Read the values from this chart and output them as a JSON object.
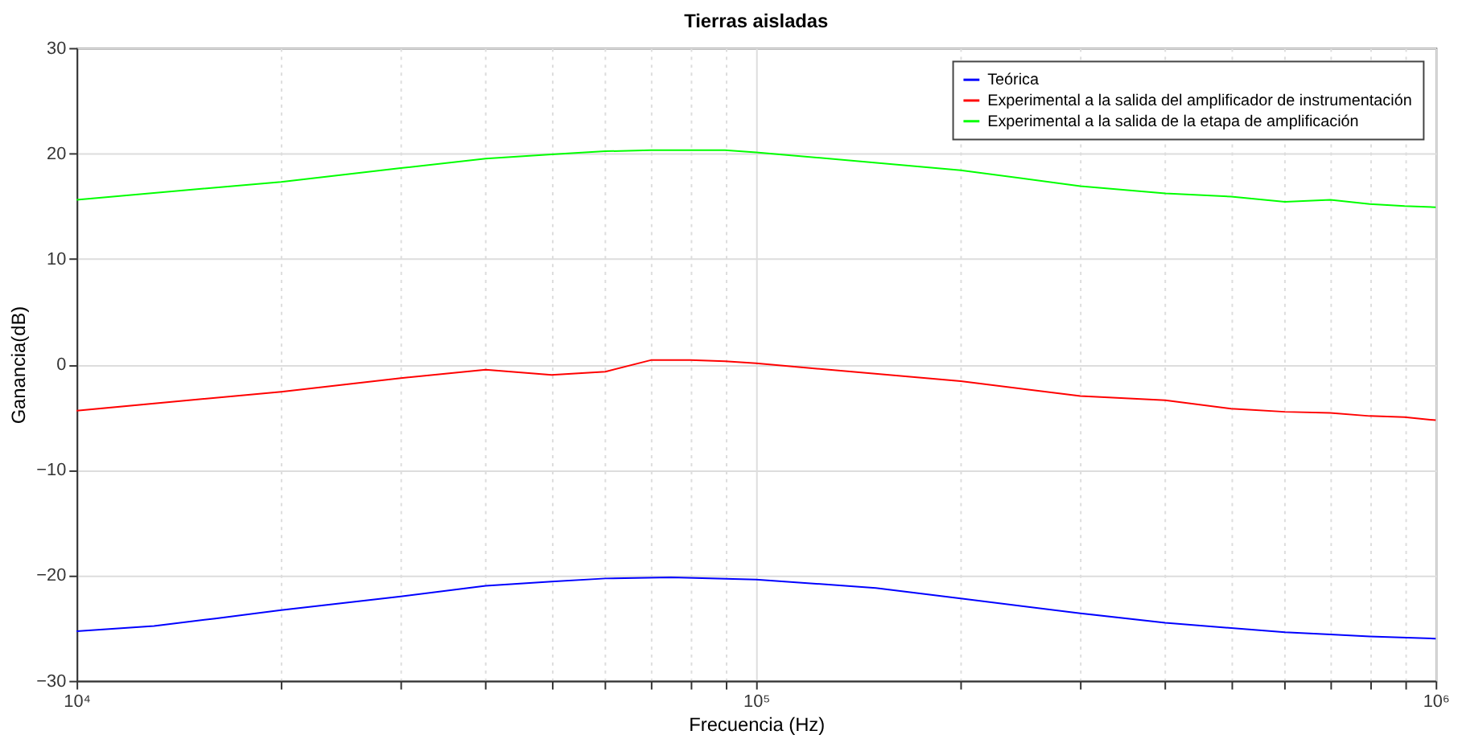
{
  "chart_data": {
    "type": "line",
    "title": "Tierras aisladas",
    "xlabel": "Frecuencia (Hz)",
    "ylabel": "Ganancia(dB)",
    "xlim": [
      10000,
      1000000
    ],
    "ylim": [
      -30,
      30
    ],
    "xticks": [
      {
        "value": 10000,
        "label": "10⁴"
      },
      {
        "value": 20000,
        "label": null
      },
      {
        "value": 30000,
        "label": null
      },
      {
        "value": 40000,
        "label": null
      },
      {
        "value": 50000,
        "label": null
      },
      {
        "value": 60000,
        "label": null
      },
      {
        "value": 70000,
        "label": null
      },
      {
        "value": 80000,
        "label": null
      },
      {
        "value": 90000,
        "label": null
      },
      {
        "value": 100000,
        "label": "10⁵"
      },
      {
        "value": 200000,
        "label": null
      },
      {
        "value": 300000,
        "label": null
      },
      {
        "value": 400000,
        "label": null
      },
      {
        "value": 500000,
        "label": null
      },
      {
        "value": 600000,
        "label": null
      },
      {
        "value": 700000,
        "label": null
      },
      {
        "value": 800000,
        "label": null
      },
      {
        "value": 900000,
        "label": null
      },
      {
        "value": 1000000,
        "label": "10⁶"
      }
    ],
    "yticks": [
      -30,
      -20,
      -10,
      0,
      10,
      20,
      30
    ],
    "log": "x",
    "grid": true,
    "legend": "top right",
    "line_style": "solid",
    "marker": "none",
    "series": [
      {
        "name": "Teórica",
        "color": "#0000ff",
        "x": [
          10000,
          13000,
          16000,
          20000,
          30000,
          40000,
          50000,
          60000,
          75000,
          100000,
          150000,
          200000,
          300000,
          400000,
          500000,
          600000,
          700000,
          800000,
          1000000
        ],
        "values": [
          -25.3,
          -24.8,
          -24.1,
          -23.3,
          -22.0,
          -21.0,
          -20.6,
          -20.3,
          -20.2,
          -20.4,
          -21.2,
          -22.2,
          -23.6,
          -24.5,
          -25.0,
          -25.4,
          -25.6,
          -25.8,
          -26.0
        ]
      },
      {
        "name": "Experimental a la salida del amplificador de instrumentación",
        "color": "#ff0000",
        "x": [
          10000,
          20000,
          30000,
          40000,
          50000,
          60000,
          70000,
          80000,
          90000,
          100000,
          200000,
          300000,
          400000,
          500000,
          600000,
          700000,
          800000,
          900000,
          1000000
        ],
        "values": [
          -4.4,
          -2.6,
          -1.3,
          -0.5,
          -1.0,
          -0.7,
          0.4,
          0.4,
          0.3,
          0.1,
          -1.6,
          -3.0,
          -3.4,
          -4.2,
          -4.5,
          -4.6,
          -4.9,
          -5.0,
          -5.3
        ]
      },
      {
        "name": "Experimental a la salida de la etapa de amplificación",
        "color": "#00ff00",
        "x": [
          10000,
          20000,
          30000,
          40000,
          50000,
          60000,
          70000,
          80000,
          90000,
          100000,
          200000,
          300000,
          400000,
          500000,
          600000,
          700000,
          800000,
          900000,
          1000000
        ],
        "values": [
          15.6,
          17.3,
          18.6,
          19.5,
          19.9,
          20.2,
          20.3,
          20.3,
          20.3,
          20.1,
          18.4,
          16.9,
          16.2,
          15.9,
          15.4,
          15.6,
          15.2,
          15.0,
          14.9
        ]
      }
    ]
  }
}
